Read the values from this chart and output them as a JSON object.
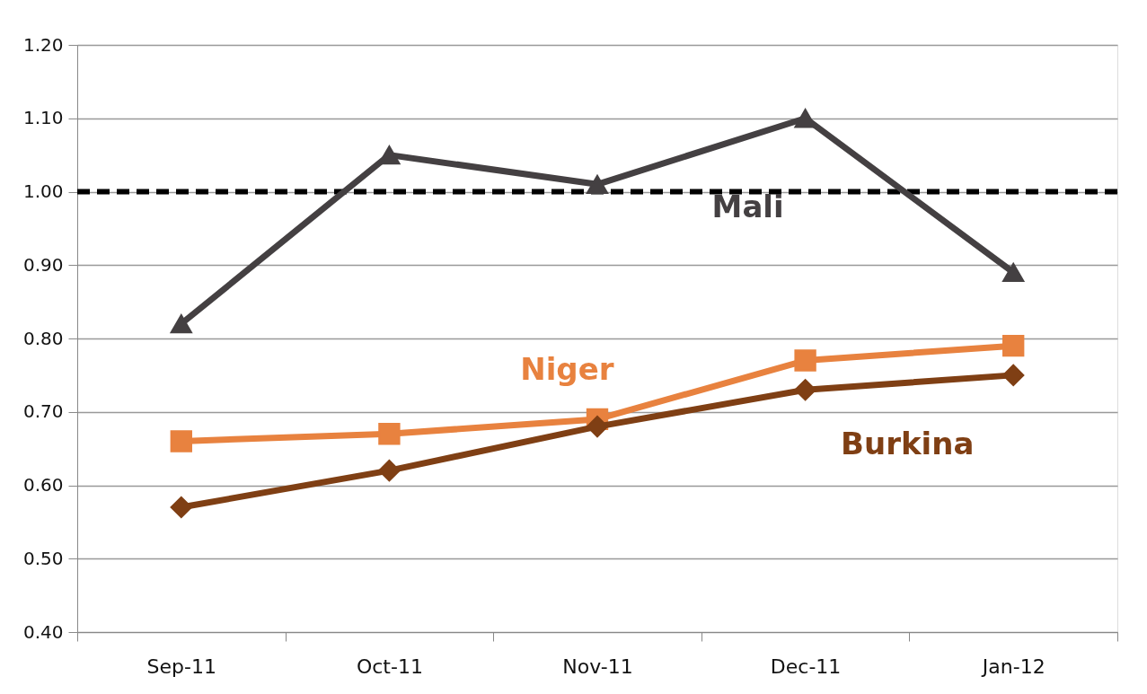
{
  "chart_data": {
    "type": "line",
    "categories": [
      "Sep-11",
      "Oct-11",
      "Nov-11",
      "Dec-11",
      "Jan-12"
    ],
    "series": [
      {
        "name": "Mali",
        "color": "#444042",
        "marker": "triangle",
        "values": [
          0.82,
          1.05,
          1.01,
          1.1,
          0.89
        ]
      },
      {
        "name": "Niger",
        "color": "#e8823f",
        "marker": "square",
        "values": [
          0.66,
          0.67,
          0.69,
          0.77,
          0.79
        ]
      },
      {
        "name": "Burkina",
        "color": "#7f3f14",
        "marker": "diamond",
        "values": [
          0.57,
          0.62,
          0.68,
          0.73,
          0.75
        ]
      }
    ],
    "ylim": [
      0.4,
      1.2
    ],
    "yticks": [
      {
        "value": 0.4,
        "label": "0.40"
      },
      {
        "value": 0.5,
        "label": "0.50"
      },
      {
        "value": 0.6,
        "label": "0.60"
      },
      {
        "value": 0.7,
        "label": "0.70"
      },
      {
        "value": 0.8,
        "label": "0.80"
      },
      {
        "value": 0.9,
        "label": "0.90"
      },
      {
        "value": 1.0,
        "label": "1.00"
      },
      {
        "value": 1.1,
        "label": "1.10"
      },
      {
        "value": 1.2,
        "label": "1.20"
      }
    ],
    "ref_lines": [
      {
        "axis": "y",
        "value": 1.0,
        "color": "#000000",
        "line_style": "dashed"
      }
    ],
    "grid": "y",
    "line_style": "solid"
  }
}
